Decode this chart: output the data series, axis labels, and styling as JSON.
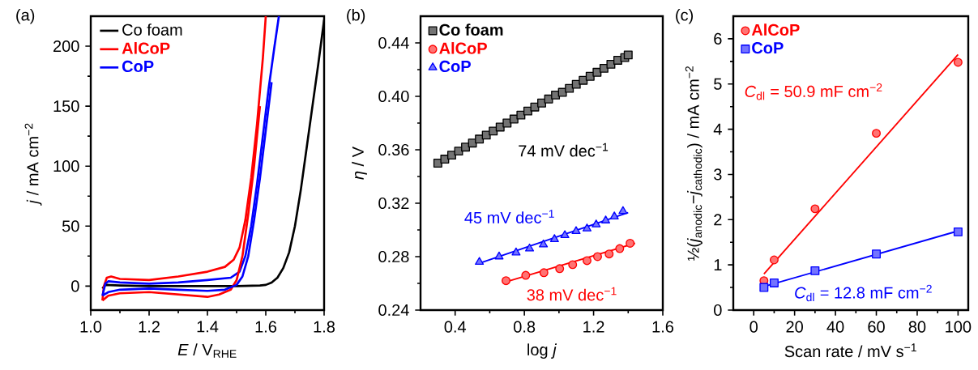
{
  "chart_data": [
    {
      "type": "line",
      "title": "(a)",
      "xlabel": "*E* / V$_{RHE}$",
      "ylabel": "*j* / mA cm$^{−2}$",
      "xlim": [
        1.0,
        1.8
      ],
      "ylim": [
        -20,
        225
      ],
      "xticks": [
        {
          "value": 1.0,
          "label": "1.0"
        },
        1.2,
        1.4,
        1.6,
        1.8
      ],
      "yticks": [
        0,
        50,
        100,
        150,
        200
      ],
      "legend": "top left",
      "series": [
        {
          "name": "Co foam",
          "color": "#000000",
          "x": [
            1.04,
            1.05,
            1.1,
            1.2,
            1.3,
            1.4,
            1.5,
            1.58,
            1.6,
            1.62,
            1.64,
            1.66,
            1.68,
            1.7,
            1.72,
            1.74,
            1.76,
            1.78,
            1.8
          ],
          "values": [
            -2,
            1,
            0.5,
            0,
            0,
            0,
            0,
            0.5,
            1,
            3,
            7,
            15,
            28,
            50,
            80,
            115,
            150,
            185,
            222
          ]
        },
        {
          "name": "AlCoP",
          "color": "#ff0000",
          "x": [
            1.04,
            1.045,
            1.055,
            1.07,
            1.1,
            1.2,
            1.3,
            1.4,
            1.46,
            1.49,
            1.51,
            1.53,
            1.55,
            1.57,
            1.59,
            1.6
          ],
          "values": [
            -12,
            0,
            7,
            8,
            6,
            5,
            8,
            12,
            16,
            22,
            32,
            55,
            90,
            135,
            190,
            225
          ]
        },
        {
          "name": "CoP",
          "color": "#0000ff",
          "x": [
            1.04,
            1.05,
            1.06,
            1.1,
            1.2,
            1.3,
            1.4,
            1.48,
            1.51,
            1.53,
            1.55,
            1.57,
            1.59,
            1.61,
            1.63,
            1.645
          ],
          "values": [
            -8,
            2,
            4,
            3,
            2,
            3,
            5,
            7,
            12,
            25,
            50,
            85,
            125,
            165,
            200,
            225
          ]
        },
        {
          "color": "#ff0000",
          "x": [
            1.04,
            1.06,
            1.1,
            1.2,
            1.3,
            1.4,
            1.44,
            1.48,
            1.5,
            1.52,
            1.54,
            1.56,
            1.58
          ],
          "values": [
            -12,
            -8,
            -6,
            -5,
            -7,
            -9,
            -7,
            -3,
            5,
            25,
            60,
            100,
            150
          ]
        },
        {
          "color": "#0000ff",
          "x": [
            1.04,
            1.06,
            1.1,
            1.2,
            1.3,
            1.4,
            1.46,
            1.5,
            1.52,
            1.54,
            1.56,
            1.58,
            1.6,
            1.62
          ],
          "values": [
            -8,
            -5,
            -3,
            -2,
            -3,
            -4,
            -3,
            1,
            8,
            25,
            55,
            90,
            130,
            170
          ]
        }
      ]
    },
    {
      "type": "scatter",
      "title": "(b)",
      "xlabel": "log *j*",
      "ylabel": "*η* / V",
      "xlim": [
        0.2,
        1.6
      ],
      "ylim": [
        0.24,
        0.46
      ],
      "xticks": [
        0.4,
        0.8,
        1.2,
        1.6
      ],
      "yticks": [
        0.24,
        0.28,
        0.32,
        0.36,
        {
          "value": 0.4,
          "label": "0.40"
        },
        0.44
      ],
      "legend": "top left",
      "series": [
        {
          "name": "Co foam",
          "color": "#000000",
          "marker": "square",
          "x": [
            0.3,
            0.34,
            0.38,
            0.42,
            0.46,
            0.5,
            0.54,
            0.58,
            0.62,
            0.66,
            0.7,
            0.74,
            0.78,
            0.82,
            0.86,
            0.9,
            0.94,
            0.98,
            1.02,
            1.06,
            1.1,
            1.14,
            1.18,
            1.22,
            1.26,
            1.3,
            1.34,
            1.38,
            1.4
          ],
          "values": [
            0.35,
            0.353,
            0.356,
            0.359,
            0.362,
            0.365,
            0.368,
            0.371,
            0.374,
            0.377,
            0.38,
            0.383,
            0.386,
            0.389,
            0.392,
            0.395,
            0.398,
            0.401,
            0.403,
            0.406,
            0.409,
            0.412,
            0.415,
            0.418,
            0.421,
            0.424,
            0.427,
            0.429,
            0.431
          ]
        },
        {
          "name": "AlCoP",
          "color": "#ff0000",
          "marker": "circle",
          "x": [
            0.694,
            0.808,
            0.913,
            1.004,
            1.079,
            1.162,
            1.223,
            1.29,
            1.351,
            1.411
          ],
          "values": [
            0.262,
            0.266,
            0.268,
            0.271,
            0.274,
            0.277,
            0.28,
            0.282,
            0.286,
            0.29
          ]
        },
        {
          "name": "CoP",
          "color": "#0000ff",
          "marker": "triangle",
          "x": [
            0.54,
            0.654,
            0.752,
            0.83,
            0.91,
            0.974,
            1.034,
            1.099,
            1.162,
            1.215,
            1.27,
            1.32,
            1.37
          ],
          "values": [
            0.276,
            0.28,
            0.283,
            0.286,
            0.289,
            0.293,
            0.296,
            0.299,
            0.301,
            0.304,
            0.307,
            0.31,
            0.314
          ]
        },
        {
          "type": "line",
          "name": "38 mV dec$^{−1}$",
          "color": "#ff0000",
          "x": [
            0.69,
            1.44
          ],
          "values": [
            0.261,
            0.29
          ]
        },
        {
          "type": "line",
          "name": "45 mV dec$^{−1}$",
          "color": "#0000ff",
          "x": [
            0.54,
            1.4
          ],
          "values": [
            0.275,
            0.313
          ]
        }
      ],
      "annotations": [
        "74 mV dec$^{−1}$"
      ]
    },
    {
      "type": "scatter",
      "title": "(c)",
      "xlabel": "Scan rate / mV s$^{−1}$",
      "ylabel": "½(*j*$_{anodic}$−*j*$_{cathodic}$) / mA cm$^{−2}$",
      "xlim": [
        -10,
        105
      ],
      "ylim": [
        0,
        6.5
      ],
      "xticks": [
        0,
        20,
        40,
        60,
        80,
        100
      ],
      "yticks": [
        0,
        1,
        2,
        3,
        4,
        5,
        6
      ],
      "legend": "top left",
      "series": [
        {
          "name": "AlCoP",
          "color": "#ff0000",
          "marker": "circle",
          "x": [
            5,
            10,
            30,
            60,
            100
          ],
          "values": [
            0.65,
            1.11,
            2.24,
            3.91,
            5.48
          ]
        },
        {
          "name": "CoP",
          "color": "#0000ff",
          "marker": "square",
          "x": [
            5,
            10,
            30,
            60,
            100
          ],
          "values": [
            0.5,
            0.6,
            0.87,
            1.24,
            1.73
          ]
        },
        {
          "type": "line",
          "name": "*C*$_{dl}$ = 50.9 mF cm$^{−2}$",
          "color": "#ff0000",
          "x": [
            5,
            100
          ],
          "values": [
            0.8,
            5.65
          ]
        },
        {
          "type": "line",
          "name": "*C*$_{dl}$ = 12.8 mF cm$^{−2}$",
          "color": "#0000ff",
          "x": [
            5,
            100
          ],
          "values": [
            0.52,
            1.75
          ]
        }
      ]
    }
  ]
}
